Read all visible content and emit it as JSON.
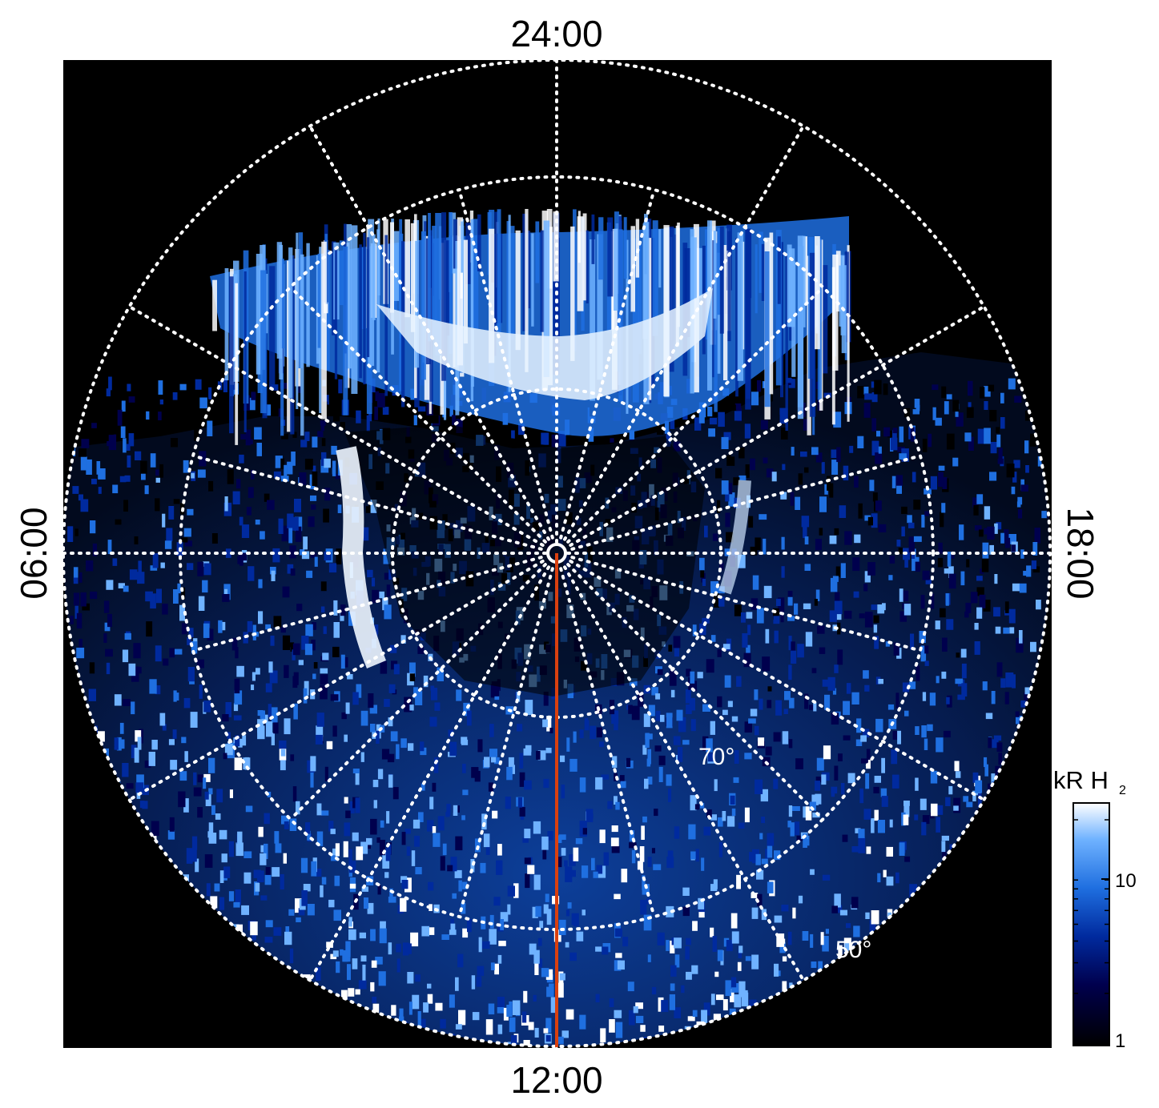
{
  "local_time_labels": {
    "top": "24:00",
    "bottom": "12:00",
    "left": "06:00",
    "right": "18:00"
  },
  "latitude_labels": {
    "inner": "70°",
    "outer": "50°"
  },
  "colorbar": {
    "title": "kR H",
    "title_subscript": "2",
    "scale": "log",
    "range": [
      1,
      25
    ],
    "ticks": [
      {
        "value": 10,
        "label": "10"
      },
      {
        "value": 1,
        "label": "1"
      }
    ],
    "colors": [
      "#000000",
      "#00004d",
      "#002a9e",
      "#1f6fe0",
      "#6fb2ff",
      "#ffffff"
    ]
  },
  "colors": {
    "background": "#000000",
    "grid": "#ffffff",
    "meridian_line": "#d9400f",
    "frame": "#ffffff"
  }
}
